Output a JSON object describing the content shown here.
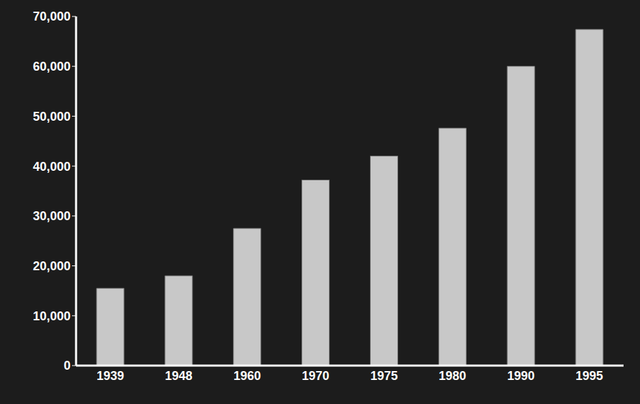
{
  "chart_data": {
    "type": "bar",
    "categories": [
      "1939",
      "1948",
      "1960",
      "1970",
      "1975",
      "1980",
      "1990",
      "1995"
    ],
    "values": [
      15500,
      18000,
      27500,
      37200,
      42000,
      47600,
      60000,
      67400
    ],
    "color": "#c8c8c8",
    "ylim": [
      0,
      70000
    ],
    "yticks": [
      0,
      {
        "value": 10000,
        "label": "10,000"
      },
      {
        "value": 20000,
        "label": "20,000"
      },
      {
        "value": 30000,
        "label": "30,000"
      },
      {
        "value": 40000,
        "label": "40,000"
      },
      {
        "value": 50000,
        "label": "50,000"
      },
      {
        "value": 60000,
        "label": "60,000"
      },
      {
        "value": 70000,
        "label": "70,000"
      }
    ],
    "grid": false
  }
}
